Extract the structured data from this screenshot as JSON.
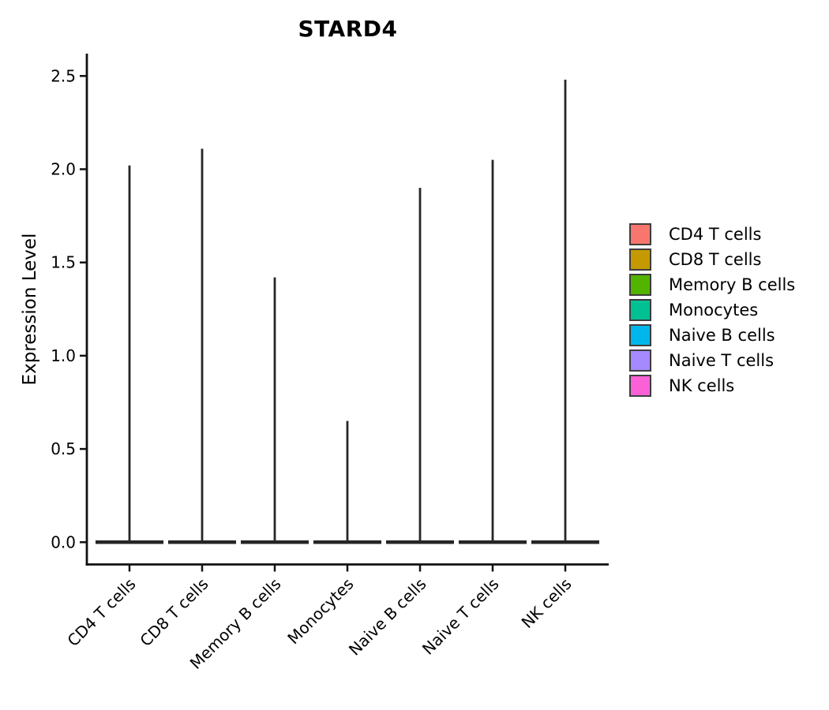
{
  "chart": {
    "title": "STARD4",
    "ylabel": "Expression Level"
  },
  "chart_data": {
    "type": "violin",
    "title": "STARD4",
    "xlabel": "",
    "ylabel": "Expression Level",
    "categories": [
      "CD4 T cells",
      "CD8 T cells",
      "Memory B cells",
      "Monocytes",
      "Naive B cells",
      "Naive T cells",
      "NK cells"
    ],
    "series": [
      {
        "name": "expression_peak",
        "values": [
          2.02,
          2.11,
          1.42,
          0.65,
          1.9,
          2.05,
          2.48
        ]
      }
    ],
    "baseline_value": 0.0,
    "ylim": [
      0.0,
      2.5
    ],
    "yticks": [
      0.0,
      0.5,
      1.0,
      1.5,
      2.0,
      2.5
    ],
    "ytick_labels": [
      "0.0",
      "0.5",
      "1.0",
      "1.5",
      "2.0",
      "2.5"
    ],
    "grid": "off",
    "violin_outline_color": "#262626",
    "axis_color": "#111111",
    "legend": {
      "position": "right",
      "entries": [
        {
          "label": "CD4 T cells",
          "color": "#F8766D"
        },
        {
          "label": "CD8 T cells",
          "color": "#C49A00"
        },
        {
          "label": "Memory B cells",
          "color": "#53B400"
        },
        {
          "label": "Monocytes",
          "color": "#00C094"
        },
        {
          "label": "Naive B cells",
          "color": "#00B6EB"
        },
        {
          "label": "Naive T cells",
          "color": "#A58AFF"
        },
        {
          "label": "NK cells",
          "color": "#FB61D7"
        }
      ]
    }
  }
}
